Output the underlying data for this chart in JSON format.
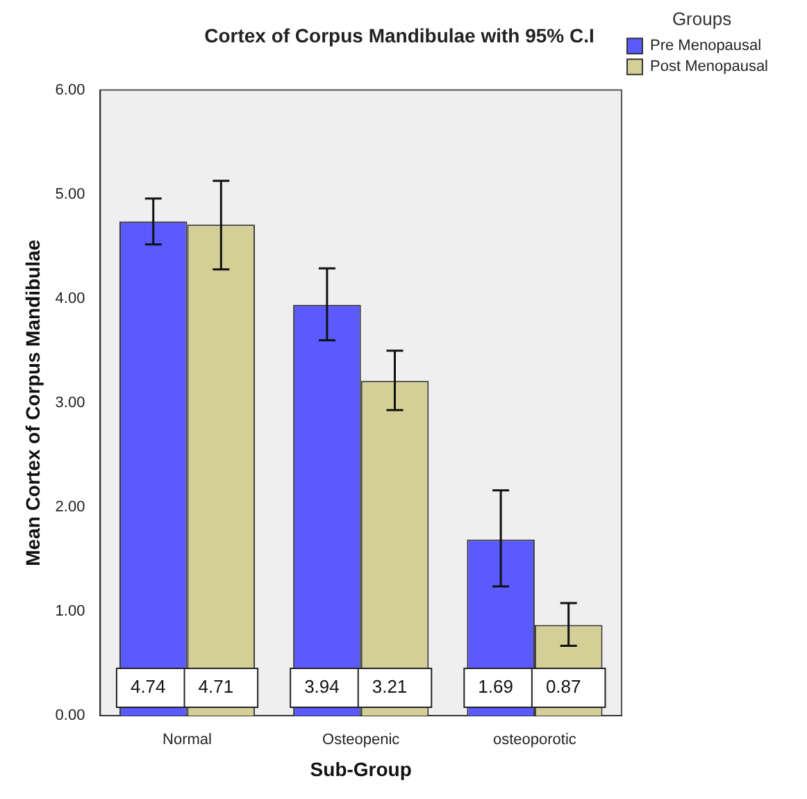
{
  "chart_data": {
    "type": "bar",
    "title": "Cortex of Corpus Mandibulae with 95% C.I",
    "xlabel": "Sub-Group",
    "ylabel": "Mean Cortex of Corpus Mandibulae",
    "legend_title": "Groups",
    "categories": [
      "Normal",
      "Osteopenic",
      "osteoporotic"
    ],
    "series": [
      {
        "name": "Pre Menopausal",
        "color": "#5a5aff",
        "values": [
          4.74,
          3.94,
          1.69
        ],
        "errors": [
          [
            4.52,
            4.96
          ],
          [
            3.6,
            4.29
          ],
          [
            1.24,
            2.16
          ]
        ]
      },
      {
        "name": "Post Menopausal",
        "color": "#d4cf96",
        "values": [
          4.71,
          3.21,
          0.87
        ],
        "errors": [
          [
            4.28,
            5.13
          ],
          [
            2.93,
            3.5
          ],
          [
            0.67,
            1.08
          ]
        ]
      }
    ],
    "ylim": [
      0,
      6
    ],
    "yticks": [
      {
        "value": 0,
        "label": "0.00"
      },
      {
        "value": 1,
        "label": "1.00"
      },
      {
        "value": 2,
        "label": "2.00"
      },
      {
        "value": 3,
        "label": "3.00"
      },
      {
        "value": 4,
        "label": "4.00"
      },
      {
        "value": 5,
        "label": "5.00"
      },
      {
        "value": 6,
        "label": "6.00"
      }
    ],
    "grid": false,
    "legend": "top right",
    "data_labels": true
  }
}
